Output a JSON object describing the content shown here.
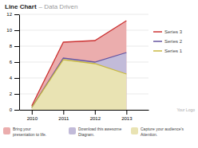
{
  "chart_data": {
    "type": "area",
    "title": "Line Chart",
    "subtitle": "– Data Driven",
    "x": [
      2010,
      2011,
      2012,
      2013
    ],
    "series": [
      {
        "name": "Series 1",
        "color": "#c8b840",
        "values": [
          0.3,
          6.3,
          5.8,
          4.5
        ]
      },
      {
        "name": "Series 2",
        "color": "#6655a0",
        "values": [
          0.3,
          6.5,
          6.0,
          7.2
        ]
      },
      {
        "name": "Series 3",
        "color": "#cc3333",
        "values": [
          0.5,
          8.5,
          8.7,
          11.2
        ]
      }
    ],
    "xlim": [
      2009.6,
      2013.7
    ],
    "xticks": [
      2010,
      2011,
      2012,
      2013
    ],
    "ylim": [
      0,
      12
    ],
    "yticks": [
      0,
      2,
      4,
      6,
      8,
      10,
      12
    ],
    "grid": true,
    "legend": "right",
    "annotations": [
      "Bring your\npresentation to life.",
      "Download this awesome\nDiagram.",
      "Capture your audience's\nAttention.",
      "Your Logo"
    ]
  }
}
